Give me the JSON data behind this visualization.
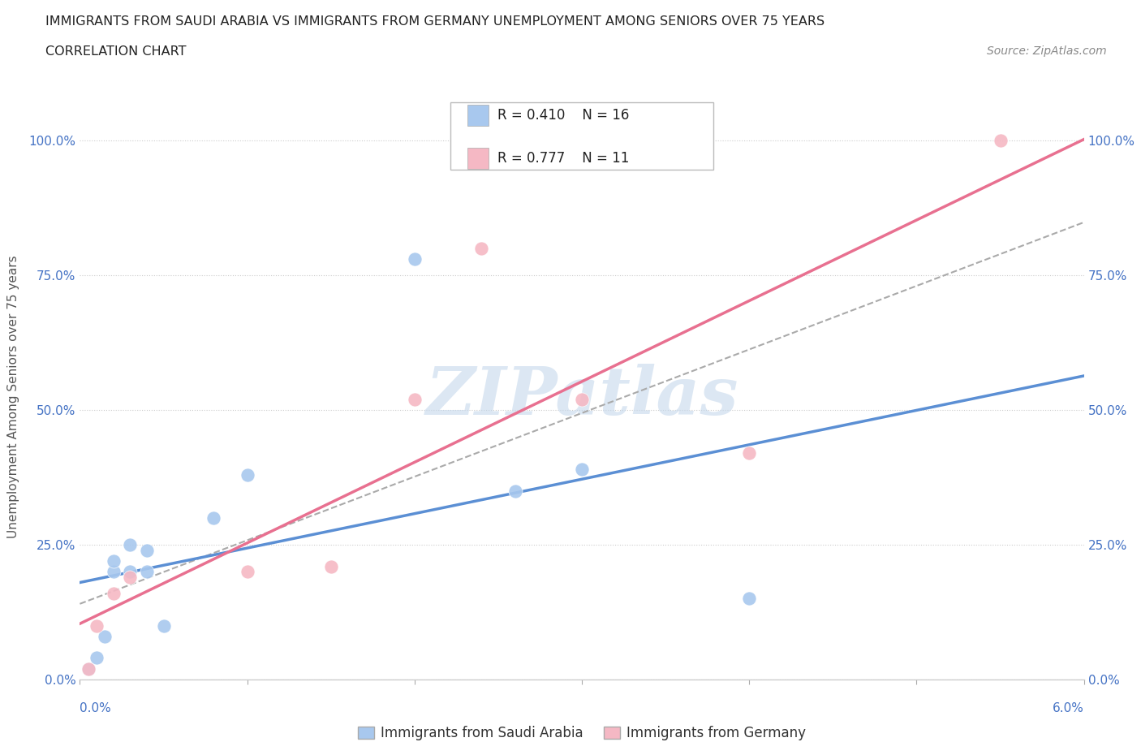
{
  "title_line1": "IMMIGRANTS FROM SAUDI ARABIA VS IMMIGRANTS FROM GERMANY UNEMPLOYMENT AMONG SENIORS OVER 75 YEARS",
  "title_line2": "CORRELATION CHART",
  "source": "Source: ZipAtlas.com",
  "ylabel_label": "Unemployment Among Seniors over 75 years",
  "legend_label1": "Immigrants from Saudi Arabia",
  "legend_label2": "Immigrants from Germany",
  "R1": "0.410",
  "N1": "16",
  "R2": "0.777",
  "N2": "11",
  "color_blue": "#a8c8ee",
  "color_pink": "#f5b8c4",
  "color_blue_line": "#5b8fd4",
  "color_pink_line": "#e87090",
  "color_dashed": "#aaaaaa",
  "watermark_color": "#c5d8ec",
  "saudi_x": [
    0.0005,
    0.001,
    0.0015,
    0.002,
    0.002,
    0.003,
    0.003,
    0.004,
    0.004,
    0.005,
    0.008,
    0.01,
    0.02,
    0.026,
    0.03,
    0.04
  ],
  "saudi_y": [
    0.02,
    0.04,
    0.08,
    0.2,
    0.22,
    0.2,
    0.25,
    0.2,
    0.24,
    0.1,
    0.3,
    0.38,
    0.78,
    0.35,
    0.39,
    0.15
  ],
  "germany_x": [
    0.0005,
    0.001,
    0.002,
    0.003,
    0.01,
    0.015,
    0.02,
    0.024,
    0.03,
    0.04,
    0.055
  ],
  "germany_y": [
    0.02,
    0.1,
    0.16,
    0.19,
    0.2,
    0.21,
    0.52,
    0.8,
    0.52,
    0.42,
    1.0
  ],
  "xmin": 0.0,
  "xmax": 0.06,
  "ymin": 0.0,
  "ymax": 1.05,
  "yticks": [
    0.0,
    0.25,
    0.5,
    0.75,
    1.0
  ],
  "ytick_labels": [
    "0.0%",
    "25.0%",
    "50.0%",
    "75.0%",
    "100.0%"
  ]
}
